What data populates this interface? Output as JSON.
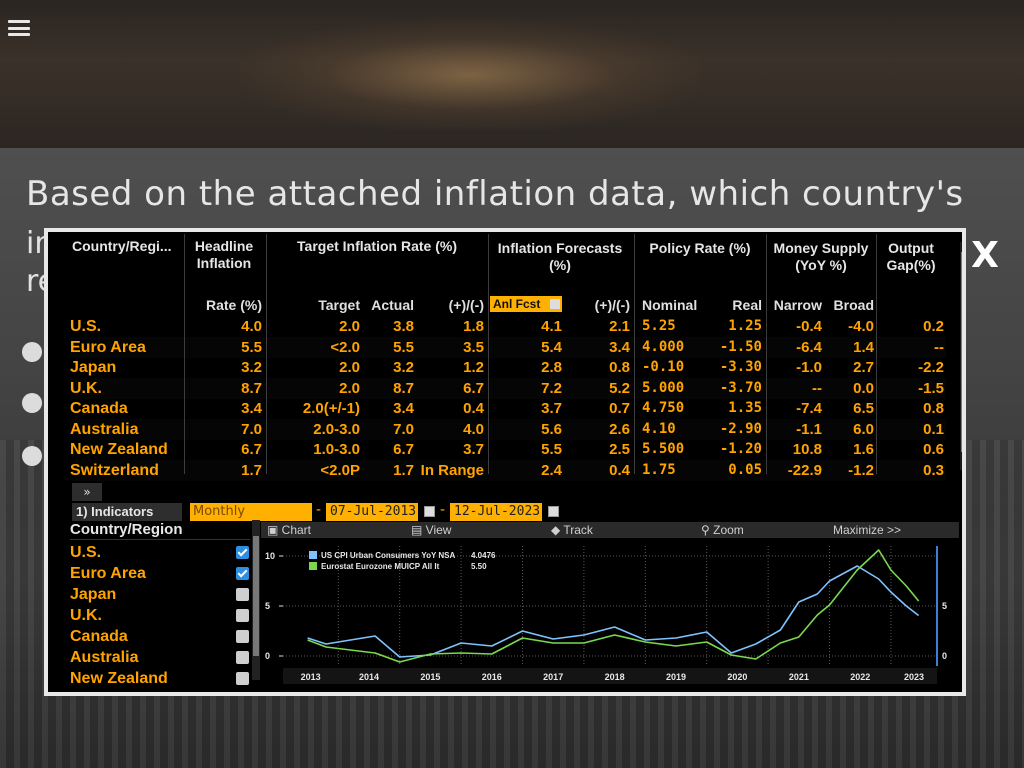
{
  "slide": {
    "title": "Based on the attached inflation data, which country's",
    "line2_fragment": "ir",
    "line3_fragment": "re"
  },
  "close_label": "X",
  "table": {
    "headers": {
      "country": "Country/Regi...",
      "headline": "Headline Inflation",
      "target_group": "Target Inflation Rate (%)",
      "forecast_group": "Inflation Forecasts (%)",
      "policy_group": "Policy Rate (%)",
      "money_group": "Money Supply (YoY %)",
      "gap_group": "Output Gap(%)"
    },
    "subheaders": {
      "rate": "Rate (%)",
      "target": "Target",
      "actual": "Actual",
      "diff": "(+)/(-)",
      "forecast_select": "Anl Fcst",
      "fdiff": "(+)/(-)",
      "nominal": "Nominal",
      "real": "Real",
      "narrow": "Narrow",
      "broad": "Broad"
    },
    "rows": [
      {
        "country": "U.S.",
        "rate": "4.0",
        "target": "2.0",
        "actual": "3.8",
        "diff": "1.8",
        "fcst": "4.1",
        "fdiff": "2.1",
        "nominal": "5.25",
        "real": "1.25",
        "narrow": "-0.4",
        "broad": "-4.0",
        "gap": "0.2"
      },
      {
        "country": "Euro Area",
        "rate": "5.5",
        "target": "<2.0",
        "actual": "5.5",
        "diff": "3.5",
        "fcst": "5.4",
        "fdiff": "3.4",
        "nominal": "4.000",
        "real": "-1.50",
        "narrow": "-6.4",
        "broad": "1.4",
        "gap": "--"
      },
      {
        "country": "Japan",
        "rate": "3.2",
        "target": "2.0",
        "actual": "3.2",
        "diff": "1.2",
        "fcst": "2.8",
        "fdiff": "0.8",
        "nominal": "-0.10",
        "real": "-3.30",
        "narrow": "-1.0",
        "broad": "2.7",
        "gap": "-2.2"
      },
      {
        "country": "U.K.",
        "rate": "8.7",
        "target": "2.0",
        "actual": "8.7",
        "diff": "6.7",
        "fcst": "7.2",
        "fdiff": "5.2",
        "nominal": "5.000",
        "real": "-3.70",
        "narrow": "--",
        "broad": "0.0",
        "gap": "-1.5"
      },
      {
        "country": "Canada",
        "rate": "3.4",
        "target": "2.0(+/-1)",
        "actual": "3.4",
        "diff": "0.4",
        "fcst": "3.7",
        "fdiff": "0.7",
        "nominal": "4.750",
        "real": "1.35",
        "narrow": "-7.4",
        "broad": "6.5",
        "gap": "0.8"
      },
      {
        "country": "Australia",
        "rate": "7.0",
        "target": "2.0-3.0",
        "actual": "7.0",
        "diff": "4.0",
        "fcst": "5.6",
        "fdiff": "2.6",
        "nominal": "4.10",
        "real": "-2.90",
        "narrow": "-1.1",
        "broad": "6.0",
        "gap": "0.1"
      },
      {
        "country": "New Zealand",
        "rate": "6.7",
        "target": "1.0-3.0",
        "actual": "6.7",
        "diff": "3.7",
        "fcst": "5.5",
        "fdiff": "2.5",
        "nominal": "5.500",
        "real": "-1.20",
        "narrow": "10.8",
        "broad": "1.6",
        "gap": "0.6"
      },
      {
        "country": "Switzerland",
        "rate": "1.7",
        "target": "<2.0P",
        "actual": "1.7",
        "diff": "In Range",
        "fcst": "2.4",
        "fdiff": "0.4",
        "nominal": "1.75",
        "real": "0.05",
        "narrow": "-22.9",
        "broad": "-1.2",
        "gap": "0.3"
      }
    ]
  },
  "toolbar": {
    "expand_label": "»",
    "indicators_label": "1) Indicators",
    "frequency": "Monthly",
    "start_date": "07-Jul-2013",
    "end_date": "12-Jul-2023",
    "dash": "-"
  },
  "indicators": {
    "header": "Country/Region",
    "items": [
      {
        "label": "U.S.",
        "checked": true
      },
      {
        "label": "Euro Area",
        "checked": true
      },
      {
        "label": "Japan",
        "checked": false
      },
      {
        "label": "U.K.",
        "checked": false
      },
      {
        "label": "Canada",
        "checked": false
      },
      {
        "label": "Australia",
        "checked": false
      },
      {
        "label": "New Zealand",
        "checked": false
      }
    ]
  },
  "chart_toolbar": {
    "chart": "Chart",
    "view": "View",
    "track": "Track",
    "zoom": "Zoom",
    "maximize": "Maximize >>"
  },
  "chart_data": {
    "type": "line",
    "title": "",
    "xlabel": "",
    "ylabel": "",
    "x_ticks": [
      "2013",
      "2014",
      "2015",
      "2016",
      "2017",
      "2018",
      "2019",
      "2020",
      "2021",
      "2022",
      "2023"
    ],
    "left_y_ticks": [
      "10",
      "5",
      "0"
    ],
    "right_y_ticks": [
      "5",
      "0"
    ],
    "ylim": [
      -1,
      11
    ],
    "grid": true,
    "legend_position": "top-left",
    "series": [
      {
        "name": "US CPI Urban Consumers YoY NSA",
        "last_value": "4.0476",
        "color": "#7ec3ff",
        "x": [
          2013.5,
          2013.8,
          2014.2,
          2014.6,
          2015.0,
          2015.5,
          2016.0,
          2016.5,
          2017.0,
          2017.5,
          2018.0,
          2018.5,
          2019.0,
          2019.5,
          2020.0,
          2020.4,
          2020.8,
          2021.2,
          2021.5,
          2021.8,
          2022.0,
          2022.45,
          2022.8,
          2023.0,
          2023.25,
          2023.45
        ],
        "y": [
          1.8,
          1.2,
          1.6,
          2.0,
          -0.1,
          0.1,
          1.3,
          1.0,
          2.5,
          1.7,
          2.1,
          2.9,
          1.6,
          1.8,
          2.4,
          0.3,
          1.2,
          2.6,
          5.4,
          6.2,
          7.5,
          9.0,
          7.7,
          6.4,
          5.0,
          4.05
        ]
      },
      {
        "name": "Eurostat Eurozone MUICP All It",
        "last_value": "5.50",
        "color": "#7ad94f",
        "x": [
          2013.5,
          2013.8,
          2014.2,
          2014.6,
          2015.0,
          2015.5,
          2016.0,
          2016.5,
          2017.0,
          2017.5,
          2018.0,
          2018.5,
          2019.0,
          2019.5,
          2020.0,
          2020.4,
          2020.8,
          2021.2,
          2021.5,
          2021.8,
          2022.0,
          2022.45,
          2022.8,
          2023.0,
          2023.25,
          2023.45
        ],
        "y": [
          1.6,
          0.9,
          0.6,
          0.3,
          -0.6,
          0.2,
          0.3,
          0.2,
          1.8,
          1.3,
          1.3,
          2.1,
          1.4,
          1.0,
          1.4,
          0.1,
          -0.3,
          1.3,
          1.9,
          4.1,
          5.1,
          8.6,
          10.6,
          8.6,
          7.0,
          5.5
        ]
      }
    ]
  }
}
